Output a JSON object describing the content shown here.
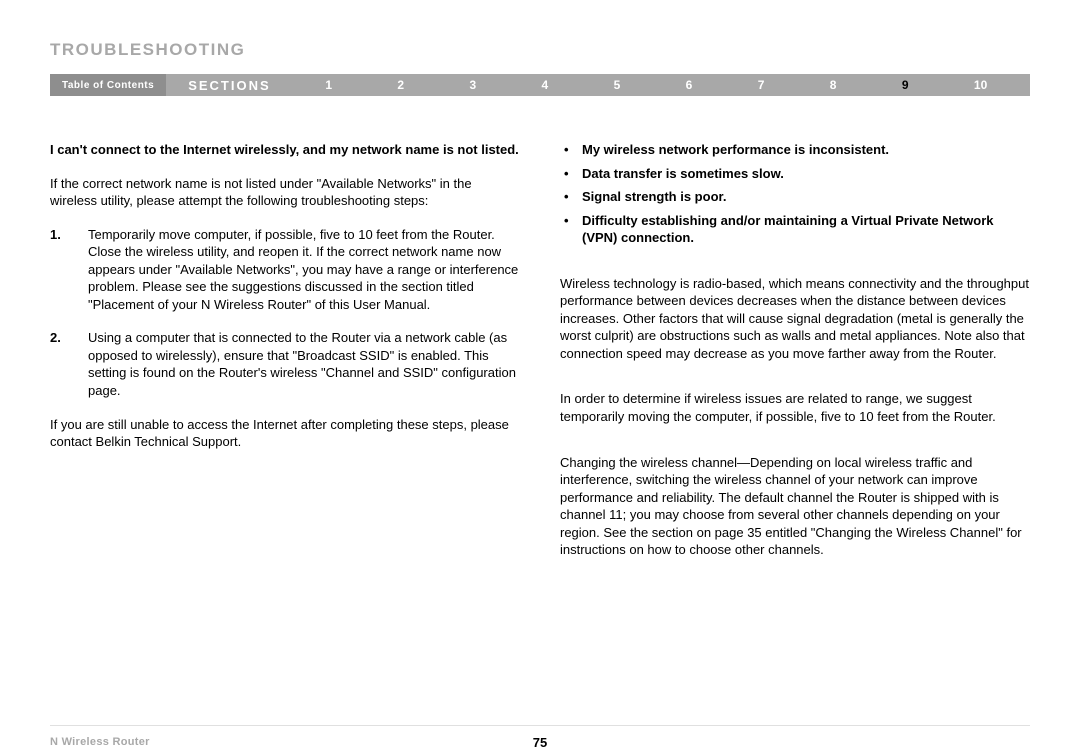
{
  "title": "TROUBLESHOOTING",
  "nav": {
    "toc_label": "Table of Contents",
    "sections_label": "SECTIONS",
    "items": [
      "1",
      "2",
      "3",
      "4",
      "5",
      "6",
      "7",
      "8",
      "9",
      "10"
    ],
    "active_index": 8
  },
  "left": {
    "heading": "I can't connect to the Internet wirelessly, and my network name is not listed.",
    "intro": "If the correct network name is not listed under \"Available Networks\" in the wireless utility, please attempt the following troubleshooting steps:",
    "steps": [
      "Temporarily move computer, if possible, five to 10 feet from the Router. Close the wireless utility, and reopen it. If the correct network name now appears under \"Available Networks\", you may have a range or interference problem. Please see the suggestions discussed in the section titled \"Placement of your N Wireless Router\" of this User Manual.",
      "Using a computer that is connected to the Router via a network cable (as opposed to wirelessly), ensure that \"Broadcast SSID\" is enabled. This setting is found on the Router's wireless \"Channel and SSID\" configuration page."
    ],
    "outro": "If you are still unable to access the Internet after completing these steps, please contact Belkin Technical Support."
  },
  "right": {
    "bullets": [
      "My wireless network performance is inconsistent.",
      "Data transfer is sometimes slow.",
      "Signal strength is poor.",
      "Difficulty establishing and/or maintaining a Virtual Private Network (VPN) connection."
    ],
    "p1": "Wireless technology is radio-based, which means connectivity and the throughput performance between devices decreases when the distance between devices increases. Other factors that will cause signal degradation (metal is generally the worst culprit) are obstructions such as walls and metal appliances. Note also that connection speed may decrease as you move farther away from the Router.",
    "p2": "In order to determine if wireless issues are related to range, we suggest temporarily moving the computer, if possible, five to 10 feet from the Router.",
    "p3": "Changing the wireless channel—Depending on local wireless traffic and interference, switching the wireless channel of your network can improve performance and reliability. The default channel the Router is shipped with is channel 11; you may choose from several other channels depending on your region. See the section on page 35 entitled \"Changing the Wireless Channel\" for instructions on how to choose other channels."
  },
  "footer": {
    "product": "N Wireless Router",
    "page_number": "75"
  },
  "colors": {
    "title_gray": "#a8a8a8",
    "nav_bg": "#a8a8a8",
    "toc_chip": "#8e8e8e",
    "active_num": "#000000"
  }
}
